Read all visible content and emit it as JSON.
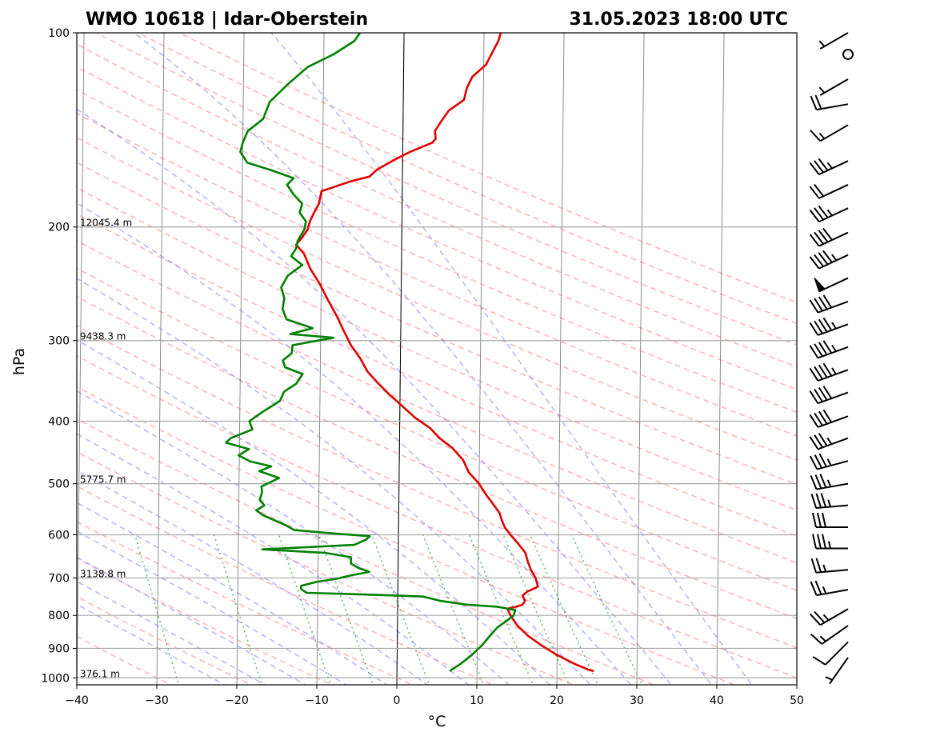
{
  "header": {
    "station": "WMO 10618 | Idar-Oberstein",
    "datetime": "31.05.2023 18:00 UTC"
  },
  "chart_data": {
    "type": "line",
    "subtype": "skew-t log-p sounding",
    "xlabel": "°C",
    "ylabel": "hPa",
    "xlim": [
      -40,
      50
    ],
    "ylim": [
      1025,
      100
    ],
    "y_scale": "log",
    "x_ticks": [
      -40,
      -30,
      -20,
      -10,
      0,
      10,
      20,
      30,
      40,
      50
    ],
    "y_ticks": [
      100,
      200,
      300,
      400,
      500,
      600,
      700,
      800,
      900,
      1000
    ],
    "grid": true,
    "height_labels": [
      {
        "p": 200,
        "label": "12045.4 m"
      },
      {
        "p": 300,
        "label": "9438.3 m"
      },
      {
        "p": 500,
        "label": "5775.7 m"
      },
      {
        "p": 700,
        "label": "3138.8 m"
      },
      {
        "p": 1000,
        "label": "376.1 m"
      }
    ],
    "series": [
      {
        "color": "#e00000",
        "points": [
          [
            976,
            24.6
          ],
          [
            972,
            24.0
          ],
          [
            950,
            22.1
          ],
          [
            920,
            19.9
          ],
          [
            890,
            18.0
          ],
          [
            860,
            16.3
          ],
          [
            830,
            15.0
          ],
          [
            800,
            14.1
          ],
          [
            785,
            13.8
          ],
          [
            780,
            13.9
          ],
          [
            776,
            14.8
          ],
          [
            770,
            15.6
          ],
          [
            760,
            15.9
          ],
          [
            745,
            15.6
          ],
          [
            735,
            16.2
          ],
          [
            722,
            17.5
          ],
          [
            700,
            17.2
          ],
          [
            680,
            16.6
          ],
          [
            660,
            16.2
          ],
          [
            640,
            15.9
          ],
          [
            620,
            15.0
          ],
          [
            600,
            14.0
          ],
          [
            585,
            13.3
          ],
          [
            570,
            12.9
          ],
          [
            555,
            12.6
          ],
          [
            540,
            11.9
          ],
          [
            520,
            10.9
          ],
          [
            500,
            10.0
          ],
          [
            480,
            8.7
          ],
          [
            460,
            8.0
          ],
          [
            440,
            6.6
          ],
          [
            425,
            5.0
          ],
          [
            410,
            3.8
          ],
          [
            395,
            1.9
          ],
          [
            380,
            0.4
          ],
          [
            365,
            -1.2
          ],
          [
            350,
            -2.7
          ],
          [
            335,
            -4.1
          ],
          [
            320,
            -5.0
          ],
          [
            305,
            -6.2
          ],
          [
            290,
            -7.1
          ],
          [
            275,
            -8.0
          ],
          [
            260,
            -9.1
          ],
          [
            245,
            -10.2
          ],
          [
            232,
            -11.4
          ],
          [
            220,
            -12.2
          ],
          [
            213,
            -13.2
          ],
          [
            208,
            -12.5
          ],
          [
            202,
            -11.8
          ],
          [
            196,
            -11.5
          ],
          [
            190,
            -11.0
          ],
          [
            184,
            -10.4
          ],
          [
            176,
            -10.1
          ],
          [
            170,
            -6.5
          ],
          [
            167,
            -4.1
          ],
          [
            163,
            -3.2
          ],
          [
            158,
            -1.3
          ],
          [
            153,
            0.9
          ],
          [
            148,
            3.7
          ],
          [
            146,
            4.1
          ],
          [
            142,
            4.0
          ],
          [
            137,
            4.8
          ],
          [
            132,
            5.7
          ],
          [
            127,
            7.6
          ],
          [
            122,
            7.9
          ],
          [
            117,
            8.6
          ],
          [
            112,
            10.3
          ],
          [
            107,
            11.1
          ],
          [
            103,
            11.8
          ],
          [
            100,
            12.1
          ]
        ]
      },
      {
        "color": "#008000",
        "points": [
          [
            976,
            6.6
          ],
          [
            970,
            6.9
          ],
          [
            950,
            8.0
          ],
          [
            920,
            9.4
          ],
          [
            890,
            10.6
          ],
          [
            860,
            11.6
          ],
          [
            835,
            12.5
          ],
          [
            815,
            13.7
          ],
          [
            800,
            14.5
          ],
          [
            785,
            14.7
          ],
          [
            776,
            12.5
          ],
          [
            770,
            8.6
          ],
          [
            760,
            5.4
          ],
          [
            748,
            3.2
          ],
          [
            742,
            -4.7
          ],
          [
            738,
            -11.4
          ],
          [
            728,
            -12.1
          ],
          [
            720,
            -12.1
          ],
          [
            710,
            -10.2
          ],
          [
            702,
            -7.6
          ],
          [
            695,
            -6.2
          ],
          [
            685,
            -3.6
          ],
          [
            675,
            -5.0
          ],
          [
            665,
            -5.9
          ],
          [
            650,
            -5.9
          ],
          [
            640,
            -9.1
          ],
          [
            632,
            -17.0
          ],
          [
            622,
            -5.5
          ],
          [
            610,
            -4.0
          ],
          [
            603,
            -3.6
          ],
          [
            598,
            -7.5
          ],
          [
            590,
            -13.0
          ],
          [
            580,
            -14.1
          ],
          [
            560,
            -16.9
          ],
          [
            550,
            -17.8
          ],
          [
            540,
            -16.8
          ],
          [
            530,
            -17.4
          ],
          [
            515,
            -17.1
          ],
          [
            505,
            -17.2
          ],
          [
            490,
            -15.0
          ],
          [
            478,
            -17.5
          ],
          [
            470,
            -16.0
          ],
          [
            462,
            -18.6
          ],
          [
            452,
            -20.1
          ],
          [
            442,
            -18.8
          ],
          [
            432,
            -21.7
          ],
          [
            425,
            -21.1
          ],
          [
            412,
            -18.4
          ],
          [
            400,
            -18.8
          ],
          [
            388,
            -17.3
          ],
          [
            372,
            -15.0
          ],
          [
            360,
            -14.5
          ],
          [
            350,
            -13.0
          ],
          [
            338,
            -12.2
          ],
          [
            330,
            -14.4
          ],
          [
            322,
            -14.7
          ],
          [
            314,
            -13.6
          ],
          [
            305,
            -13.5
          ],
          [
            297,
            -8.4
          ],
          [
            293,
            -13.8
          ],
          [
            287,
            -11.0
          ],
          [
            278,
            -14.3
          ],
          [
            268,
            -14.8
          ],
          [
            258,
            -14.6
          ],
          [
            248,
            -15.0
          ],
          [
            238,
            -14.2
          ],
          [
            229,
            -12.4
          ],
          [
            222,
            -13.8
          ],
          [
            216,
            -13.2
          ],
          [
            210,
            -13.0
          ],
          [
            202,
            -12.2
          ],
          [
            196,
            -12.0
          ],
          [
            190,
            -12.8
          ],
          [
            184,
            -12.5
          ],
          [
            178,
            -13.6
          ],
          [
            172,
            -14.4
          ],
          [
            168,
            -13.6
          ],
          [
            163,
            -16.6
          ],
          [
            159,
            -19.4
          ],
          [
            153,
            -20.3
          ],
          [
            148,
            -20.0
          ],
          [
            142,
            -19.4
          ],
          [
            136,
            -17.5
          ],
          [
            128,
            -16.7
          ],
          [
            120,
            -14.4
          ],
          [
            113,
            -12.0
          ],
          [
            108,
            -8.8
          ],
          [
            103,
            -6.2
          ],
          [
            100,
            -5.5
          ]
        ]
      }
    ]
  },
  "wind_barbs": {
    "color": "#000000",
    "levels": [
      {
        "p": 100,
        "dir": 240,
        "spd": 5
      },
      {
        "p": 108,
        "dir": 0,
        "spd": 0
      },
      {
        "p": 118,
        "dir": 240,
        "spd": 5
      },
      {
        "p": 129,
        "dir": 260,
        "spd": 20
      },
      {
        "p": 139,
        "dir": 240,
        "spd": 15
      },
      {
        "p": 158,
        "dir": 245,
        "spd": 35
      },
      {
        "p": 172,
        "dir": 245,
        "spd": 20
      },
      {
        "p": 187,
        "dir": 245,
        "spd": 35
      },
      {
        "p": 204,
        "dir": 245,
        "spd": 40
      },
      {
        "p": 221,
        "dir": 245,
        "spd": 45
      },
      {
        "p": 240,
        "dir": 245,
        "spd": 50
      },
      {
        "p": 261,
        "dir": 250,
        "spd": 40
      },
      {
        "p": 283,
        "dir": 250,
        "spd": 45
      },
      {
        "p": 307,
        "dir": 250,
        "spd": 45
      },
      {
        "p": 333,
        "dir": 250,
        "spd": 45
      },
      {
        "p": 361,
        "dir": 250,
        "spd": 40
      },
      {
        "p": 393,
        "dir": 250,
        "spd": 40
      },
      {
        "p": 425,
        "dir": 250,
        "spd": 35
      },
      {
        "p": 461,
        "dir": 255,
        "spd": 35
      },
      {
        "p": 500,
        "dir": 260,
        "spd": 35
      },
      {
        "p": 540,
        "dir": 265,
        "spd": 35
      },
      {
        "p": 584,
        "dir": 270,
        "spd": 30
      },
      {
        "p": 630,
        "dir": 270,
        "spd": 35
      },
      {
        "p": 680,
        "dir": 265,
        "spd": 25
      },
      {
        "p": 730,
        "dir": 260,
        "spd": 25
      },
      {
        "p": 782,
        "dir": 240,
        "spd": 25
      },
      {
        "p": 830,
        "dir": 235,
        "spd": 15
      },
      {
        "p": 880,
        "dir": 225,
        "spd": 10
      },
      {
        "p": 930,
        "dir": 215,
        "spd": 5
      }
    ]
  }
}
